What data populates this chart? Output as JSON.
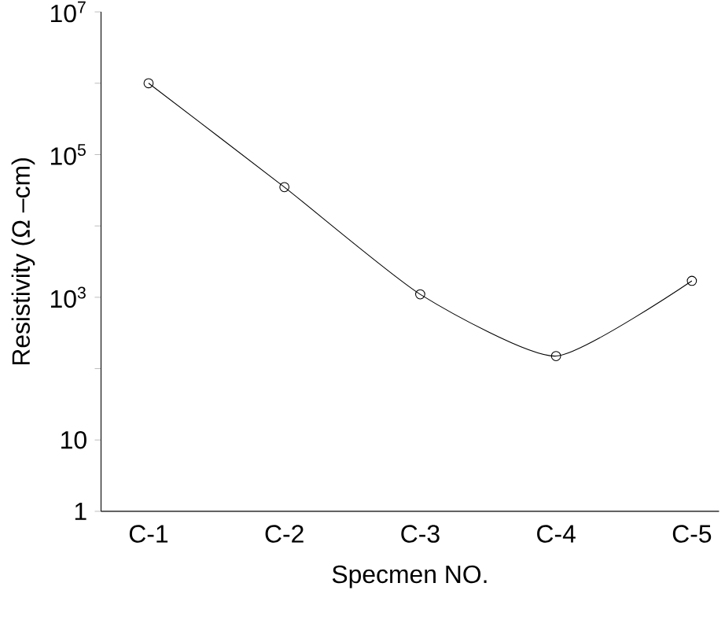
{
  "chart_data": {
    "type": "line",
    "xlabel": "Specmen NO.",
    "ylabel": "Resistivity (Ω –cm)",
    "categories": [
      "C-1",
      "C-2",
      "C-3",
      "C-4",
      "C-5"
    ],
    "series": [
      {
        "color": "#000000",
        "values": [
          1000000,
          35000,
          1100,
          150,
          1700
        ]
      }
    ],
    "log": true,
    "marker": "circle",
    "ylim": [
      1,
      10000000
    ],
    "yticks": [
      1,
      10,
      {
        "value": 100,
        "label": null
      },
      {
        "value": 1000,
        "label": "10$^{3}$"
      },
      {
        "value": 10000,
        "label": null
      },
      {
        "value": 100000,
        "label": "10$^{5}$"
      },
      {
        "value": 1000000,
        "label": null
      },
      {
        "value": 10000000,
        "label": "10$^{7}$"
      }
    ]
  }
}
